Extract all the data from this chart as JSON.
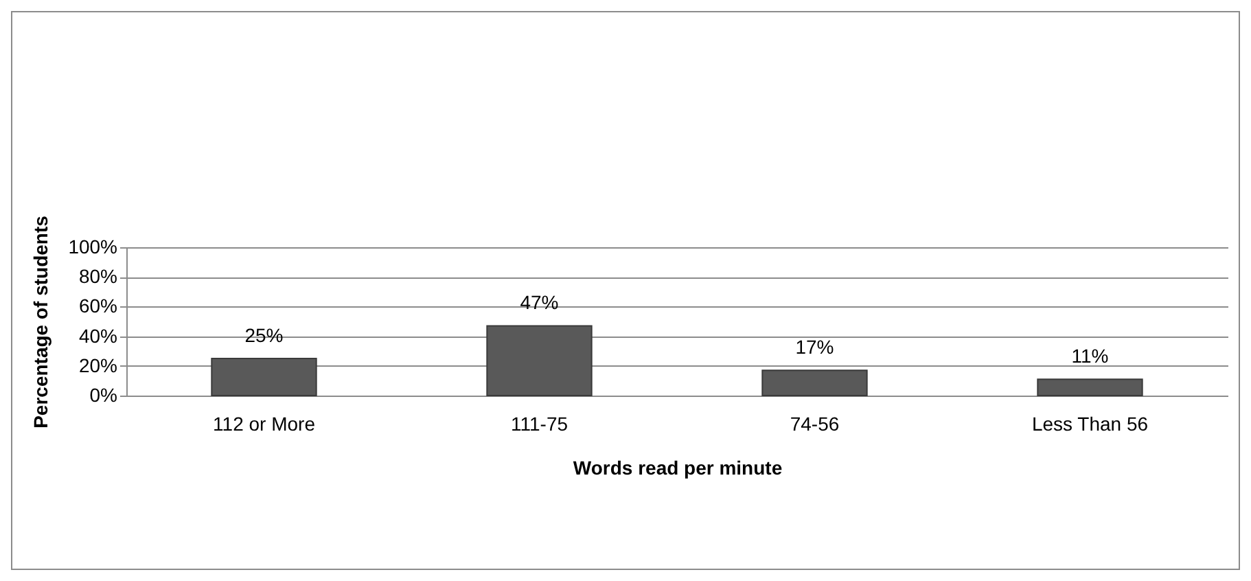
{
  "chart_data": {
    "type": "bar",
    "xlabel": "Words read per minute",
    "ylabel": "Percentage of students",
    "categories": [
      "112 or More",
      "111-75",
      "74-56",
      "Less Than 56"
    ],
    "values": [
      25,
      47,
      17,
      11
    ],
    "value_labels": [
      "25%",
      "47%",
      "17%",
      "11%"
    ],
    "color": "#595959",
    "grid": "y",
    "ylim": [
      0,
      100
    ],
    "yticks": [
      {
        "value": 0,
        "label": "0%"
      },
      {
        "value": 20,
        "label": "20%"
      },
      {
        "value": 40,
        "label": "40%"
      },
      {
        "value": 60,
        "label": "60%"
      },
      {
        "value": 80,
        "label": "80%"
      },
      {
        "value": 100,
        "label": "100%"
      }
    ]
  }
}
